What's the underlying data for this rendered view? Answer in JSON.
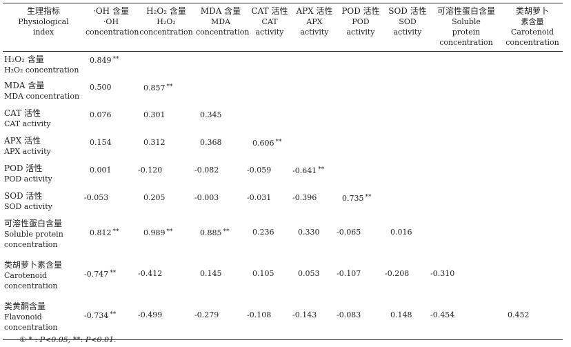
{
  "header": {
    "col0": {
      "zh": "生理指标",
      "en1": "Physiological",
      "en2": "index"
    },
    "cols": [
      {
        "zh": "·OH 含量",
        "l2": "·OH",
        "l3": "concentration"
      },
      {
        "zh": "H₂O₂ 含量",
        "l2": "H₂O₂",
        "l3": "concentration"
      },
      {
        "zh": "MDA 含量",
        "l2": "MDA",
        "l3": "concentration"
      },
      {
        "zh": "CAT 活性",
        "l2": "CAT",
        "l3": "activity"
      },
      {
        "zh": "APX 活性",
        "l2": "APX",
        "l3": "activity"
      },
      {
        "zh": "POD 活性",
        "l2": "POD",
        "l3": "activity"
      },
      {
        "zh": "SOD 活性",
        "l2": "SOD",
        "l3": "activity"
      },
      {
        "zh": "可溶性蛋白含量",
        "l2": "Soluble",
        "l3": "protein",
        "l4": "concentration"
      },
      {
        "zh": "类胡萝卜",
        "l2": "素含量",
        "l3": "Carotenoid",
        "l4": "concentration"
      }
    ]
  },
  "rows": [
    {
      "zh": "H₂O₂ 含量",
      "en1": "H₂O₂ concentration",
      "en2": "",
      "v": [
        "0.849",
        "",
        "",
        "",
        "",
        "",
        "",
        "",
        ""
      ],
      "s": [
        "**",
        "",
        "",
        "",
        "",
        "",
        "",
        "",
        ""
      ]
    },
    {
      "zh": "MDA 含量",
      "en1": "MDA concentration",
      "en2": "",
      "v": [
        "0.500",
        "0.857",
        "",
        "",
        "",
        "",
        "",
        "",
        ""
      ],
      "s": [
        "",
        "**",
        "",
        "",
        "",
        "",
        "",
        "",
        ""
      ]
    },
    {
      "zh": "CAT 活性",
      "en1": "CAT activity",
      "en2": "",
      "v": [
        "0.076",
        "0.301",
        "0.345",
        "",
        "",
        "",
        "",
        "",
        ""
      ],
      "s": [
        "",
        "",
        "",
        "",
        "",
        "",
        "",
        "",
        ""
      ]
    },
    {
      "zh": "APX 活性",
      "en1": "APX activity",
      "en2": "",
      "v": [
        "0.154",
        "0.312",
        "0.368",
        "0.606",
        "",
        "",
        "",
        "",
        ""
      ],
      "s": [
        "",
        "",
        "",
        "**",
        "",
        "",
        "",
        "",
        ""
      ]
    },
    {
      "zh": "POD 活性",
      "en1": "POD activity",
      "en2": "",
      "v": [
        "0.001",
        "-0.120",
        "-0.082",
        "-0.059",
        "-0.641",
        "",
        "",
        "",
        ""
      ],
      "s": [
        "",
        "",
        "",
        "",
        "**",
        "",
        "",
        "",
        ""
      ]
    },
    {
      "zh": "SOD 活性",
      "en1": "SOD activity",
      "en2": "",
      "v": [
        "-0.053",
        "0.205",
        "-0.003",
        "-0.031",
        "-0.396",
        "0.735",
        "",
        "",
        ""
      ],
      "s": [
        "",
        "",
        "",
        "",
        "",
        "**",
        "",
        "",
        ""
      ]
    },
    {
      "zh": "可溶性蛋白含量",
      "en1": "Soluble protein",
      "en2": "concentration",
      "v": [
        "0.812",
        "0.989",
        "0.885",
        "0.236",
        "0.330",
        "-0.065",
        "0.016",
        "",
        ""
      ],
      "s": [
        "**",
        "**",
        "**",
        "",
        "",
        "",
        "",
        "",
        ""
      ]
    },
    {
      "zh": "类胡萝卜素含量",
      "en1": "Carotenoid",
      "en2": "concentration",
      "v": [
        "-0.747",
        "-0.412",
        "0.145",
        "0.105",
        "0.053",
        "-0.107",
        "-0.208",
        "-0.310",
        ""
      ],
      "s": [
        "**",
        "",
        "",
        "",
        "",
        "",
        "",
        "",
        ""
      ]
    },
    {
      "zh": "类黄酮含量",
      "en1": "Flavonoid",
      "en2": "concentration",
      "v": [
        "-0.734",
        "-0.499",
        "-0.279",
        "-0.108",
        "-0.143",
        "-0.083",
        "0.148",
        "-0.454",
        "0.452"
      ],
      "s": [
        "**",
        "",
        "",
        "",
        "",
        "",
        "",
        "",
        ""
      ]
    }
  ],
  "footnote": {
    "marker": "①",
    "star1": "*",
    "p1": "P<0.05,",
    "star2": "**",
    "p2": "P<0.01."
  }
}
